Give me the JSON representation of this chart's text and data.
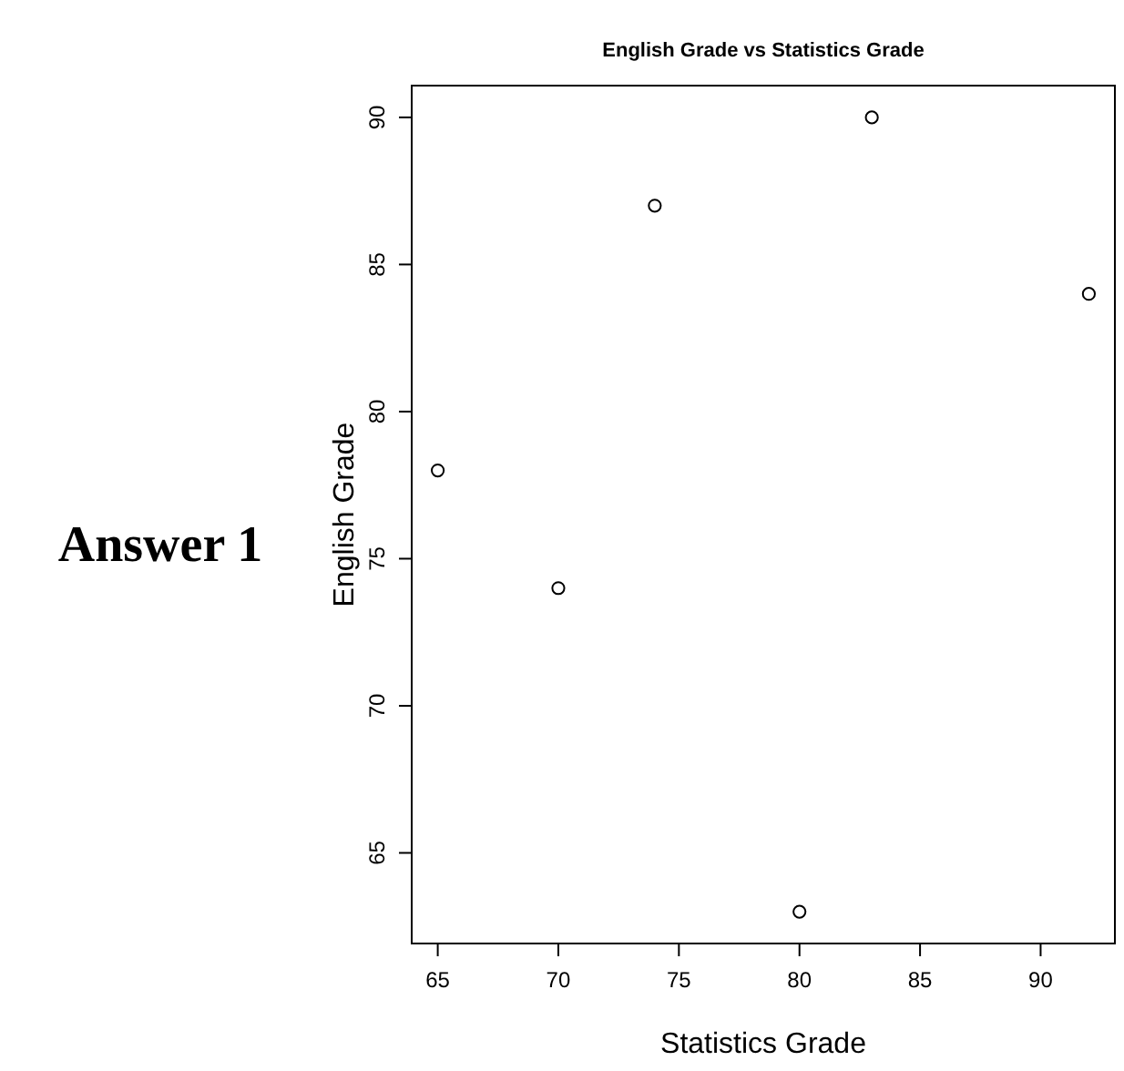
{
  "chart_data": {
    "type": "scatter",
    "title": "English Grade vs Statistics Grade",
    "xlabel": "Statistics Grade",
    "ylabel": "English Grade",
    "annotations": [
      "Answer 1"
    ],
    "x": [
      65,
      70,
      74,
      80,
      83,
      92
    ],
    "series": [
      {
        "color": "#000000",
        "values": [
          78,
          74,
          87,
          63,
          90,
          84
        ]
      }
    ],
    "xlim": [
      63.92,
      93.08
    ],
    "ylim": [
      61.92,
      91.08
    ],
    "xticks": [
      65,
      70,
      75,
      80,
      85,
      90
    ],
    "yticks": [
      65,
      70,
      75,
      80,
      85,
      90
    ],
    "marker": "circle",
    "grid": false
  }
}
